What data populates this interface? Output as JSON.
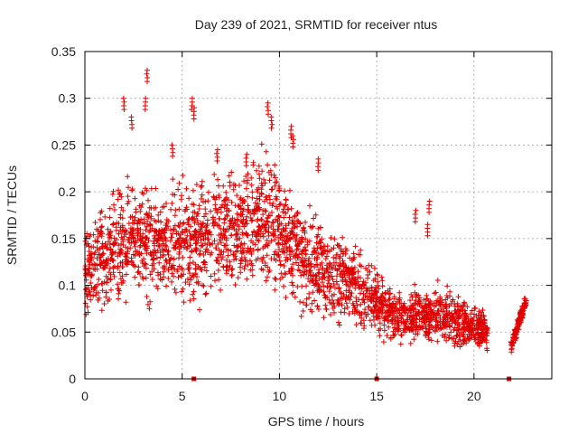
{
  "chart_data": {
    "type": "scatter",
    "title": "Day 239 of 2021, SRMTID for receiver ntus",
    "xlabel": "GPS time / hours",
    "ylabel": "SRMTID / TECUs",
    "xlim": [
      0,
      24
    ],
    "ylim": [
      0,
      0.35
    ],
    "grid": true,
    "marker": "+",
    "series_color": "#e00000",
    "x_ticks": [
      0,
      5,
      10,
      15,
      20
    ],
    "x_tick_labels": [
      "0",
      "5",
      "10",
      "15",
      "20"
    ],
    "y_ticks": [
      0,
      0.05,
      0.1,
      0.15,
      0.2,
      0.25,
      0.3,
      0.35
    ],
    "y_tick_labels": [
      "0",
      "0.05",
      "0.1",
      "0.15",
      "0.2",
      "0.25",
      "0.3",
      "0.35"
    ],
    "trend": [
      {
        "x": 0.0,
        "y": 0.11
      },
      {
        "x": 1.0,
        "y": 0.13
      },
      {
        "x": 2.5,
        "y": 0.15
      },
      {
        "x": 4.0,
        "y": 0.14
      },
      {
        "x": 6.0,
        "y": 0.15
      },
      {
        "x": 8.0,
        "y": 0.16
      },
      {
        "x": 9.5,
        "y": 0.17
      },
      {
        "x": 11.0,
        "y": 0.13
      },
      {
        "x": 13.0,
        "y": 0.11
      },
      {
        "x": 14.5,
        "y": 0.09
      },
      {
        "x": 16.0,
        "y": 0.065
      },
      {
        "x": 18.0,
        "y": 0.07
      },
      {
        "x": 19.5,
        "y": 0.06
      },
      {
        "x": 20.7,
        "y": 0.05
      }
    ],
    "gaps": [
      [
        20.7,
        21.9
      ]
    ],
    "late_segment": {
      "x0": 21.9,
      "x1": 22.7,
      "y0": 0.035,
      "y1": 0.085
    },
    "spikes": [
      {
        "x": 3.2,
        "y": 0.33
      },
      {
        "x": 3.1,
        "y": 0.3
      },
      {
        "x": 2.0,
        "y": 0.3
      },
      {
        "x": 2.4,
        "y": 0.28
      },
      {
        "x": 5.5,
        "y": 0.3
      },
      {
        "x": 5.6,
        "y": 0.29
      },
      {
        "x": 9.4,
        "y": 0.295
      },
      {
        "x": 9.6,
        "y": 0.28
      },
      {
        "x": 10.6,
        "y": 0.27
      },
      {
        "x": 10.7,
        "y": 0.26
      },
      {
        "x": 4.5,
        "y": 0.25
      },
      {
        "x": 6.8,
        "y": 0.245
      },
      {
        "x": 8.3,
        "y": 0.24
      },
      {
        "x": 12.0,
        "y": 0.235
      },
      {
        "x": 17.7,
        "y": 0.19
      },
      {
        "x": 17.6,
        "y": 0.165
      },
      {
        "x": 17.0,
        "y": 0.18
      }
    ],
    "zero_points": [
      {
        "x": 5.6,
        "y": 0
      },
      {
        "x": 15.0,
        "y": 0
      },
      {
        "x": 21.8,
        "y": 0
      }
    ]
  }
}
